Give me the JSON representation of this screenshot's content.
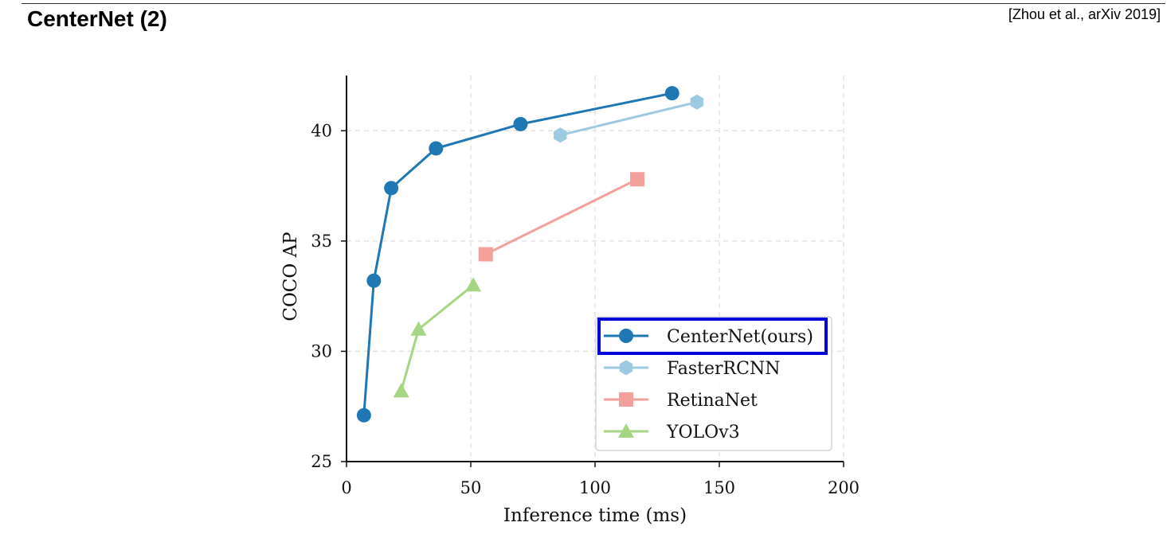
{
  "header": {
    "title": "CenterNet (2)",
    "citation": "[Zhou et al., arXiv 2019]"
  },
  "chart_data": {
    "type": "line",
    "title": "",
    "xlabel": "Inference time (ms)",
    "ylabel": "COCO AP",
    "xlim": [
      0,
      200
    ],
    "ylim": [
      25,
      42.5
    ],
    "xticks": [
      0,
      50,
      100,
      150,
      200
    ],
    "yticks": [
      25,
      30,
      35,
      40
    ],
    "grid": "dashed",
    "legend_position": "lower-right",
    "highlighted_legend_entry": "CenterNet(ours)",
    "highlight_color": "#0000dd",
    "series": [
      {
        "name": "CenterNet(ours)",
        "color": "#1f77b4",
        "marker": "circle",
        "x": [
          7,
          11,
          18,
          36,
          70,
          131
        ],
        "y": [
          27.1,
          33.2,
          37.4,
          39.2,
          40.3,
          41.7
        ]
      },
      {
        "name": "FasterRCNN",
        "color": "#9ecae1",
        "marker": "hexagon",
        "x": [
          86,
          141
        ],
        "y": [
          39.8,
          41.3
        ]
      },
      {
        "name": "RetinaNet",
        "color": "#f4a09c",
        "marker": "square",
        "x": [
          56,
          117
        ],
        "y": [
          34.4,
          37.8
        ]
      },
      {
        "name": "YOLOv3",
        "color": "#a6d683",
        "marker": "triangle",
        "x": [
          22,
          29,
          51
        ],
        "y": [
          28.2,
          31.0,
          33.0
        ]
      }
    ]
  }
}
